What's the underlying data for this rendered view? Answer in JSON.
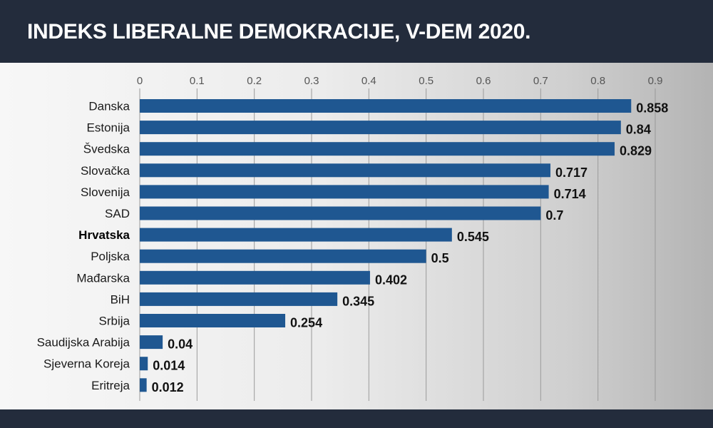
{
  "title": "INDEKS LIBERALNE DEMOKRACIJE, V-DEM 2020.",
  "colors": {
    "header_bg": "#232c3c",
    "bar": "#1f5791",
    "grid": "#9a9a9a"
  },
  "chart_data": {
    "type": "bar",
    "orientation": "horizontal",
    "title": "INDEKS LIBERALNE DEMOKRACIJE, V-DEM 2020.",
    "categories": [
      "Danska",
      "Estonija",
      "Švedska",
      "Slovačka",
      "Slovenija",
      "SAD",
      "Hrvatska",
      "Poljska",
      "Mađarska",
      "BiH",
      "Srbija",
      "Saudijska Arabija",
      "Sjeverna Koreja",
      "Eritreja"
    ],
    "values": [
      0.858,
      0.84,
      0.829,
      0.717,
      0.714,
      0.7,
      0.545,
      0.5,
      0.402,
      0.345,
      0.254,
      0.04,
      0.014,
      0.012
    ],
    "value_labels": [
      "0.858",
      "0.84",
      "0.829",
      "0.717",
      "0.714",
      "0.7",
      "0.545",
      "0.5",
      "0.402",
      "0.345",
      "0.254",
      "0.04",
      "0.014",
      "0.012"
    ],
    "highlight": "Hrvatska",
    "xlim": [
      0,
      0.9
    ],
    "x_ticks": [
      "0",
      "0.1",
      "0.2",
      "0.3",
      "0.4",
      "0.5",
      "0.6",
      "0.7",
      "0.8",
      "0.9"
    ],
    "x_axis_position": "top",
    "grid": true,
    "legend": "none"
  }
}
